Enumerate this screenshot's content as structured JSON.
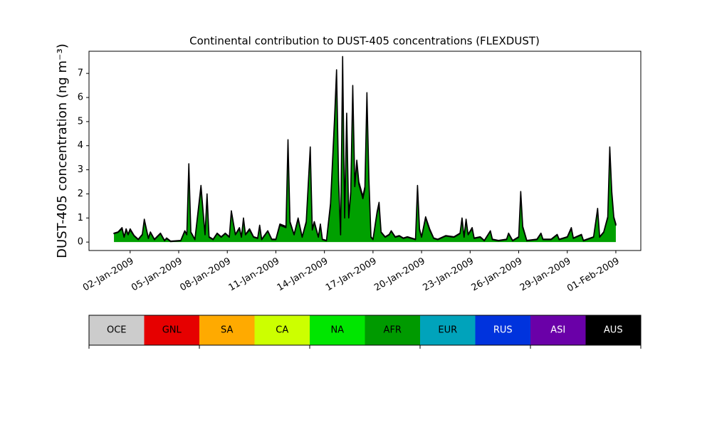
{
  "chart_data": {
    "type": "stacked_area",
    "title": "Continental contribution to DUST-405 concentrations (FLEXDUST)",
    "ylabel": "DUST-405 concentration (ng m⁻³)",
    "x": [
      "2009-01-01 00:00",
      "2009-01-01 06:00",
      "2009-01-01 12:00",
      "2009-01-01 15:00",
      "2009-01-01 18:00",
      "2009-01-01 21:00",
      "2009-01-02 00:00",
      "2009-01-02 06:00",
      "2009-01-02 12:00",
      "2009-01-02 18:00",
      "2009-01-02 21:00",
      "2009-01-03 03:00",
      "2009-01-03 06:00",
      "2009-01-03 12:00",
      "2009-01-03 21:00",
      "2009-01-04 03:00",
      "2009-01-04 06:00",
      "2009-01-04 12:00",
      "2009-01-05 03:00",
      "2009-01-05 09:00",
      "2009-01-05 12:00",
      "2009-01-05 15:00",
      "2009-01-05 18:00",
      "2009-01-06 00:00",
      "2009-01-06 09:00",
      "2009-01-06 15:00",
      "2009-01-06 18:00",
      "2009-01-06 21:00",
      "2009-01-07 03:00",
      "2009-01-07 09:00",
      "2009-01-07 15:00",
      "2009-01-07 21:00",
      "2009-01-08 03:00",
      "2009-01-08 06:00",
      "2009-01-08 12:00",
      "2009-01-08 18:00",
      "2009-01-08 21:00",
      "2009-01-09 00:00",
      "2009-01-09 03:00",
      "2009-01-09 09:00",
      "2009-01-09 15:00",
      "2009-01-09 21:00",
      "2009-01-10 00:00",
      "2009-01-10 03:00",
      "2009-01-10 12:00",
      "2009-01-10 18:00",
      "2009-01-11 00:00",
      "2009-01-11 06:00",
      "2009-01-11 15:00",
      "2009-01-11 18:00",
      "2009-01-11 21:00",
      "2009-01-12 03:00",
      "2009-01-12 09:00",
      "2009-01-12 15:00",
      "2009-01-12 21:00",
      "2009-01-13 03:00",
      "2009-01-13 06:00",
      "2009-01-13 09:00",
      "2009-01-13 15:00",
      "2009-01-13 18:00",
      "2009-01-13 21:00",
      "2009-01-14 03:00",
      "2009-01-14 09:00",
      "2009-01-14 15:00",
      "2009-01-14 18:00",
      "2009-01-14 21:00",
      "2009-01-15 00:00",
      "2009-01-15 03:00",
      "2009-01-15 06:00",
      "2009-01-15 09:00",
      "2009-01-15 12:00",
      "2009-01-15 15:00",
      "2009-01-15 18:00",
      "2009-01-15 21:00",
      "2009-01-16 00:00",
      "2009-01-16 03:00",
      "2009-01-16 09:00",
      "2009-01-16 12:00",
      "2009-01-16 15:00",
      "2009-01-16 18:00",
      "2009-01-16 21:00",
      "2009-01-17 00:00",
      "2009-01-17 06:00",
      "2009-01-17 09:00",
      "2009-01-17 12:00",
      "2009-01-17 18:00",
      "2009-01-18 00:00",
      "2009-01-18 03:00",
      "2009-01-18 09:00",
      "2009-01-18 15:00",
      "2009-01-18 21:00",
      "2009-01-19 03:00",
      "2009-01-19 09:00",
      "2009-01-19 15:00",
      "2009-01-19 18:00",
      "2009-01-19 21:00",
      "2009-01-20 00:00",
      "2009-01-20 06:00",
      "2009-01-20 12:00",
      "2009-01-20 18:00",
      "2009-01-21 00:00",
      "2009-01-21 12:00",
      "2009-01-22 00:00",
      "2009-01-22 09:00",
      "2009-01-22 12:00",
      "2009-01-22 15:00",
      "2009-01-22 18:00",
      "2009-01-22 21:00",
      "2009-01-23 03:00",
      "2009-01-23 06:00",
      "2009-01-23 15:00",
      "2009-01-23 21:00",
      "2009-01-24 06:00",
      "2009-01-24 09:00",
      "2009-01-24 18:00",
      "2009-01-25 06:00",
      "2009-01-25 09:00",
      "2009-01-25 15:00",
      "2009-01-26 00:00",
      "2009-01-26 03:00",
      "2009-01-26 06:00",
      "2009-01-26 12:00",
      "2009-01-27 03:00",
      "2009-01-27 09:00",
      "2009-01-27 12:00",
      "2009-01-28 00:00",
      "2009-01-28 09:00",
      "2009-01-28 12:00",
      "2009-01-29 00:00",
      "2009-01-29 06:00",
      "2009-01-29 09:00",
      "2009-01-29 21:00",
      "2009-01-30 00:00",
      "2009-01-30 15:00",
      "2009-01-30 21:00",
      "2009-01-31 00:00",
      "2009-01-31 06:00",
      "2009-01-31 12:00",
      "2009-01-31 15:00",
      "2009-01-31 18:00",
      "2009-01-31 21:00",
      "2009-02-01 00:00"
    ],
    "xlim": [
      "2008-12-30 11:00",
      "2009-02-02 13:00"
    ],
    "xticks": [
      {
        "value": "2009-01-02",
        "label": "02-Jan-2009"
      },
      {
        "value": "2009-01-05",
        "label": "05-Jan-2009"
      },
      {
        "value": "2009-01-08",
        "label": "08-Jan-2009"
      },
      {
        "value": "2009-01-11",
        "label": "11-Jan-2009"
      },
      {
        "value": "2009-01-14",
        "label": "14-Jan-2009"
      },
      {
        "value": "2009-01-17",
        "label": "17-Jan-2009"
      },
      {
        "value": "2009-01-20",
        "label": "20-Jan-2009"
      },
      {
        "value": "2009-01-23",
        "label": "23-Jan-2009"
      },
      {
        "value": "2009-01-26",
        "label": "26-Jan-2009"
      },
      {
        "value": "2009-01-29",
        "label": "29-Jan-2009"
      },
      {
        "value": "2009-02-01",
        "label": "01-Feb-2009"
      }
    ],
    "ylim": [
      -0.35,
      7.92
    ],
    "yticks": [
      0,
      1,
      2,
      3,
      4,
      5,
      6,
      7
    ],
    "outline_color": "#000000",
    "series": [
      {
        "color": "#00a000",
        "values": [
          0.35,
          0.4,
          0.55,
          0.2,
          0.5,
          0.3,
          0.5,
          0.25,
          0.1,
          0.3,
          0.9,
          0.15,
          0.4,
          0.1,
          0.35,
          0.05,
          0.15,
          0.02,
          0.05,
          0.45,
          0.3,
          3.15,
          0.4,
          0.1,
          2.25,
          0.3,
          1.9,
          0.2,
          0.1,
          0.35,
          0.2,
          0.35,
          0.2,
          1.25,
          0.3,
          0.55,
          0.2,
          0.95,
          0.3,
          0.5,
          0.2,
          0.15,
          0.65,
          0.1,
          0.45,
          0.1,
          0.1,
          0.7,
          0.6,
          4.1,
          0.8,
          0.3,
          0.95,
          0.2,
          0.8,
          3.85,
          0.5,
          0.8,
          0.2,
          0.7,
          0.1,
          0.05,
          1.5,
          5.0,
          7.0,
          2.5,
          0.3,
          7.55,
          1.0,
          5.2,
          1.0,
          2.0,
          6.35,
          2.3,
          3.3,
          2.4,
          1.8,
          2.2,
          6.05,
          2.5,
          0.2,
          0.1,
          1.2,
          1.55,
          0.4,
          0.2,
          0.3,
          0.45,
          0.2,
          0.25,
          0.15,
          0.2,
          0.15,
          0.1,
          2.25,
          0.5,
          0.2,
          1.0,
          0.5,
          0.15,
          0.1,
          0.25,
          0.2,
          0.35,
          0.95,
          0.2,
          0.9,
          0.3,
          0.55,
          0.15,
          0.2,
          0.05,
          0.45,
          0.1,
          0.05,
          0.1,
          0.35,
          0.05,
          0.2,
          2.0,
          0.6,
          0.05,
          0.1,
          0.35,
          0.1,
          0.1,
          0.3,
          0.1,
          0.2,
          0.55,
          0.15,
          0.3,
          0.05,
          0.2,
          1.35,
          0.2,
          0.4,
          1.0,
          3.85,
          2.0,
          1.0,
          0.7
        ]
      },
      {
        "color": "#6a00a8",
        "values": [
          0.02,
          0.02,
          0.05,
          0.02,
          0.05,
          0.02,
          0.05,
          0.02,
          0.02,
          0.02,
          0.05,
          0.02,
          0.02,
          0.02,
          0.02,
          0.02,
          0.02,
          0.02,
          0.02,
          0.02,
          0.02,
          0.1,
          0.02,
          0.02,
          0.1,
          0.02,
          0.1,
          0.02,
          0.02,
          0.02,
          0.02,
          0.02,
          0.02,
          0.05,
          0.02,
          0.05,
          0.02,
          0.05,
          0.02,
          0.05,
          0.02,
          0.02,
          0.05,
          0.02,
          0.02,
          0.02,
          0.02,
          0.05,
          0.05,
          0.15,
          0.05,
          0.02,
          0.05,
          0.02,
          0.05,
          0.1,
          0.05,
          0.05,
          0.02,
          0.05,
          0.02,
          0.02,
          0.1,
          0.15,
          0.15,
          0.1,
          0.02,
          0.15,
          0.05,
          0.15,
          0.05,
          0.1,
          0.15,
          0.1,
          0.1,
          0.1,
          0.1,
          0.1,
          0.15,
          0.1,
          0.02,
          0.02,
          0.05,
          0.1,
          0.02,
          0.02,
          0.02,
          0.02,
          0.02,
          0.02,
          0.02,
          0.02,
          0.02,
          0.02,
          0.1,
          0.05,
          0.02,
          0.05,
          0.05,
          0.02,
          0.02,
          0.02,
          0.02,
          0.02,
          0.05,
          0.02,
          0.05,
          0.02,
          0.05,
          0.02,
          0.02,
          0.02,
          0.02,
          0.02,
          0.02,
          0.02,
          0.02,
          0.02,
          0.02,
          0.1,
          0.05,
          0.02,
          0.02,
          0.02,
          0.02,
          0.02,
          0.02,
          0.02,
          0.02,
          0.05,
          0.02,
          0.02,
          0.02,
          0.02,
          0.05,
          0.02,
          0.02,
          0.05,
          0.1,
          0.1,
          0.05,
          0.05
        ]
      }
    ]
  },
  "colorbar": {
    "labels": [
      "OCE",
      "GNL",
      "SA",
      "CA",
      "NA",
      "AFR",
      "EUR",
      "RUS",
      "ASI",
      "AUS"
    ],
    "colors": [
      "#cccccc",
      "#e60000",
      "#ffaa00",
      "#ccff00",
      "#00e600",
      "#009a00",
      "#00a3bb",
      "#0033dd",
      "#6a00a8",
      "#000000"
    ]
  }
}
